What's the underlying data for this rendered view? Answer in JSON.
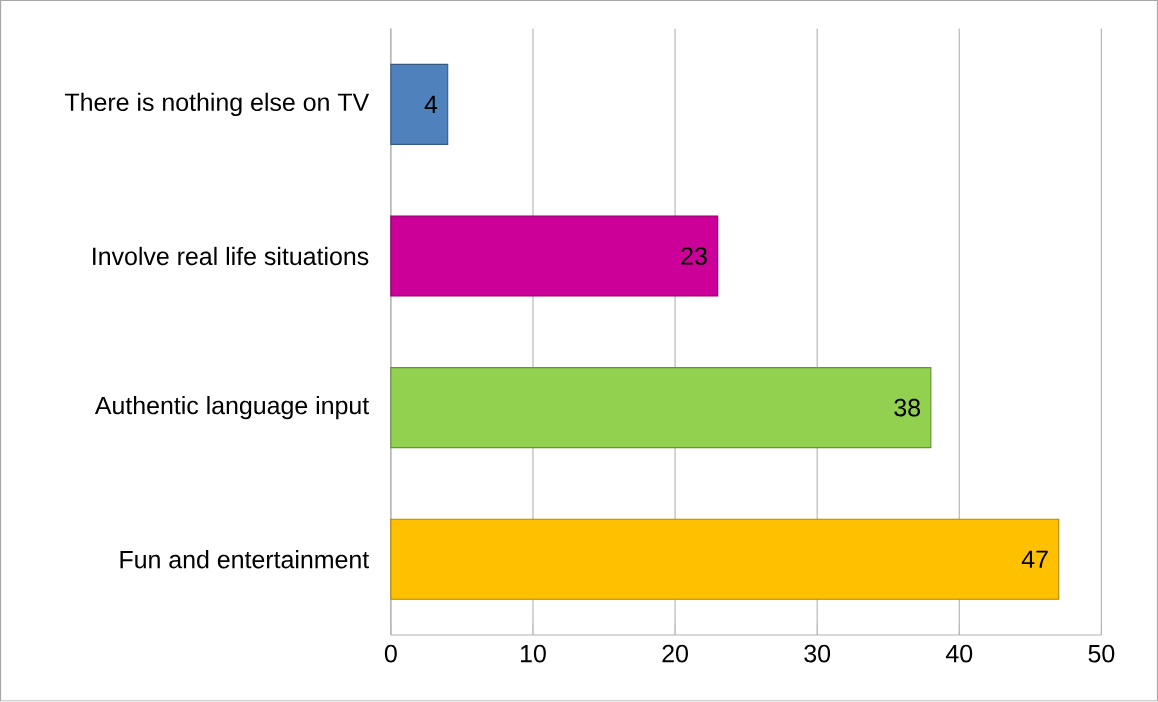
{
  "chart_data": {
    "type": "bar",
    "orientation": "horizontal",
    "categories": [
      "There is nothing else on TV",
      "Involve real life situations",
      "Authentic language input",
      "Fun and entertainment"
    ],
    "values": [
      4,
      23,
      38,
      47
    ],
    "colors": [
      "#4f81bd",
      "#cc0099",
      "#92d050",
      "#ffc000"
    ],
    "xlim": [
      0,
      50
    ],
    "xticks": [
      0,
      10,
      20,
      30,
      40,
      50
    ],
    "grid": "x",
    "data_labels": true
  }
}
